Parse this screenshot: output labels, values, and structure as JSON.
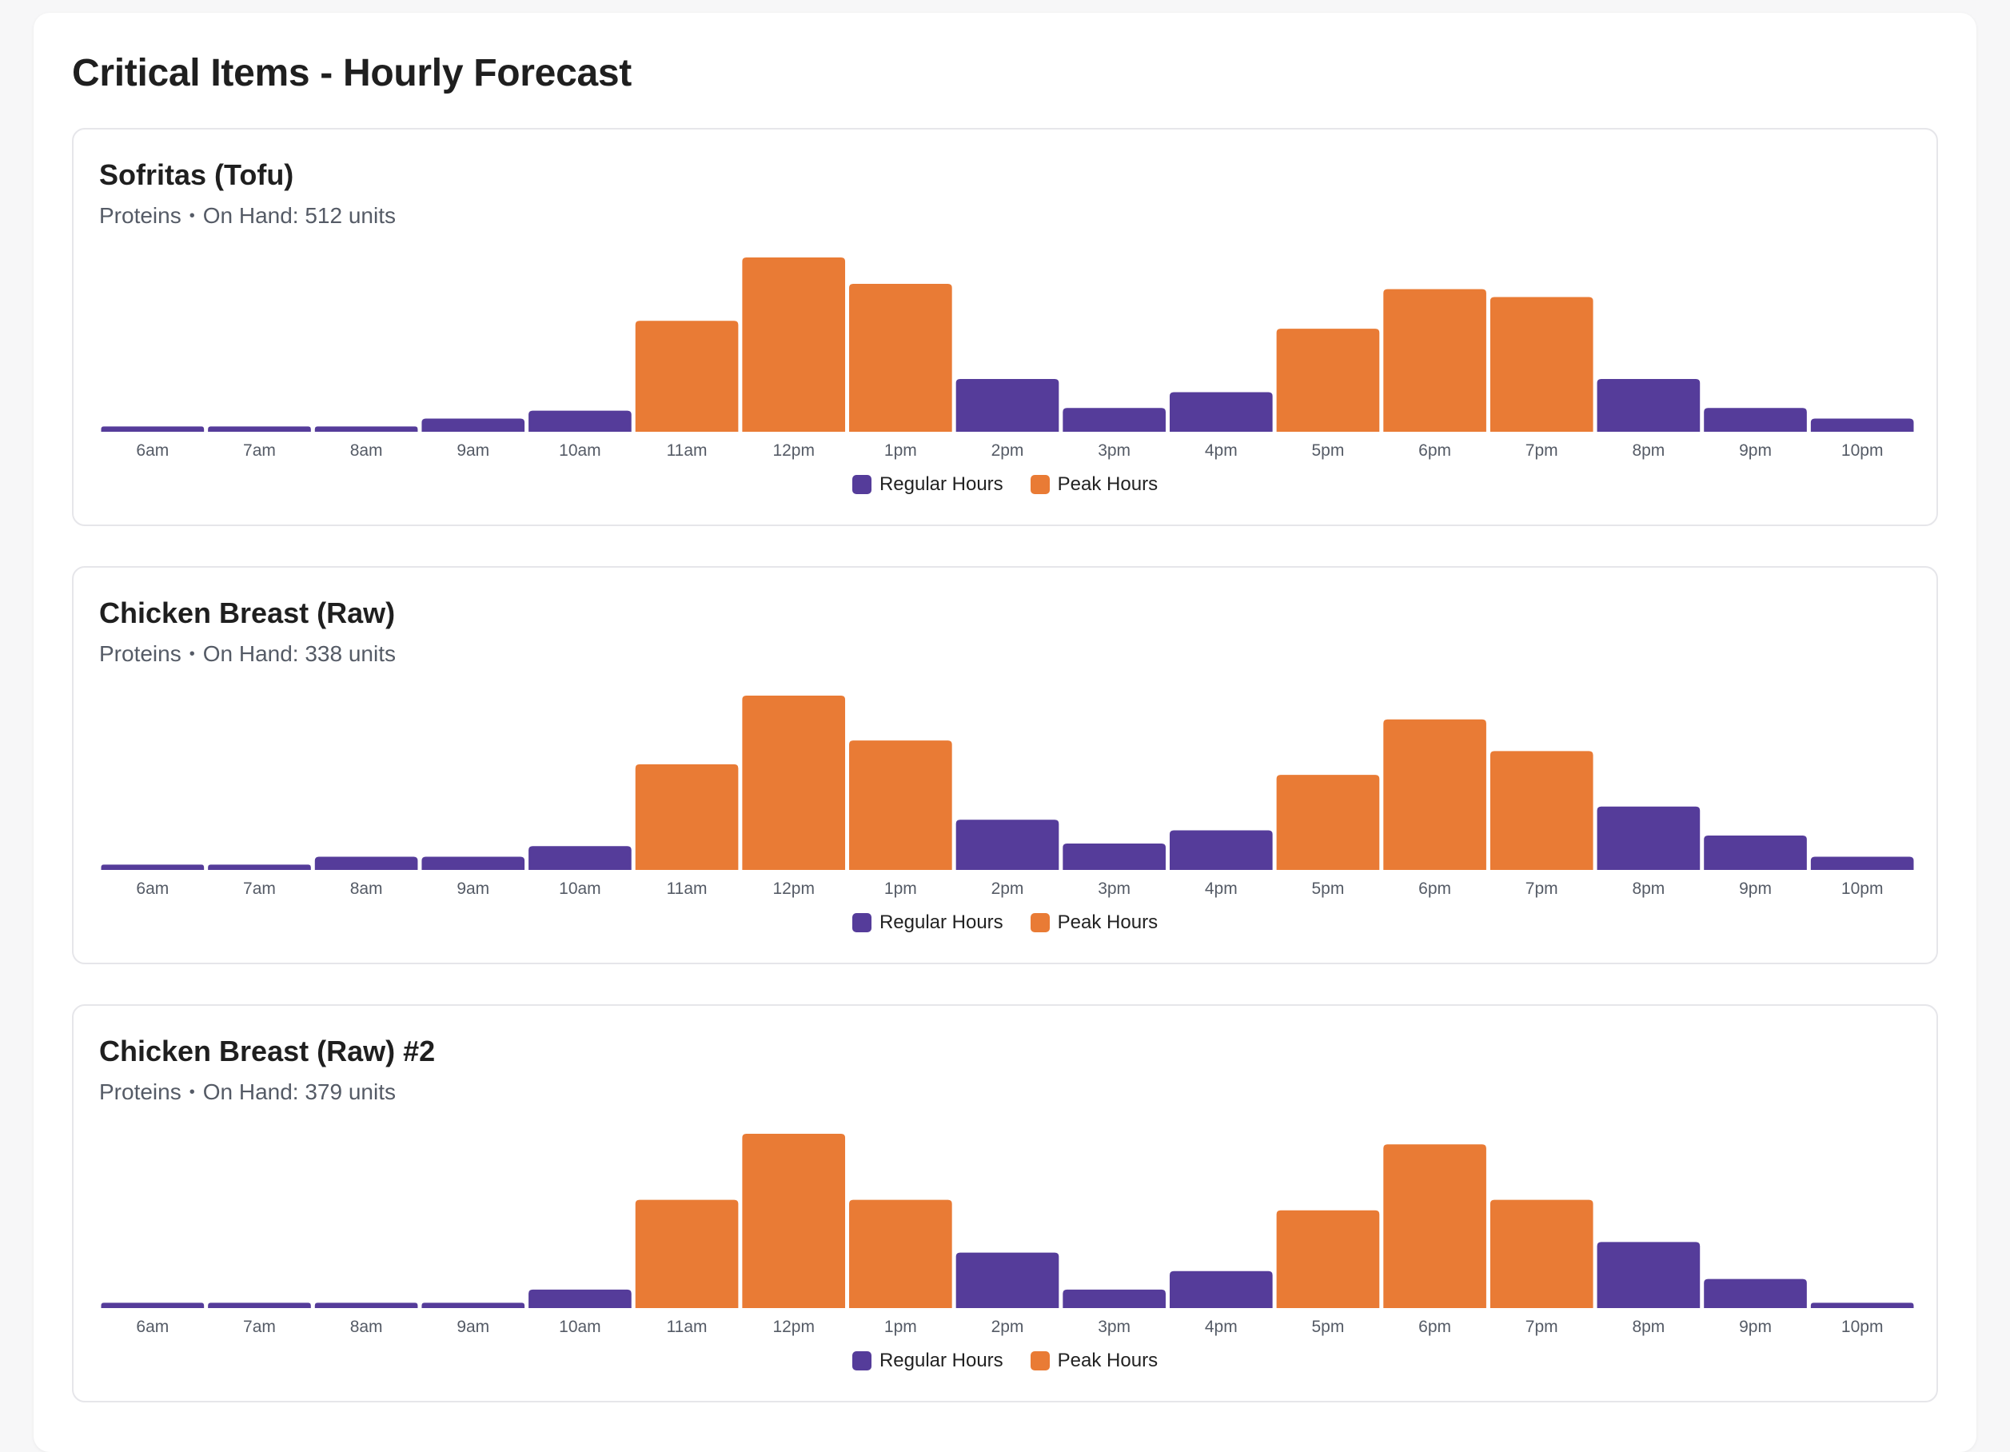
{
  "page": {
    "title": "Critical Items - Hourly Forecast"
  },
  "legend": {
    "regular_label": "Regular Hours",
    "peak_label": "Peak Hours"
  },
  "colors": {
    "regular": "#553c9a",
    "peak": "#e97b35"
  },
  "items": [
    {
      "name": "Sofritas (Tofu)",
      "category": "Proteins",
      "on_hand": "On Hand: 512 units"
    },
    {
      "name": "Chicken Breast (Raw)",
      "category": "Proteins",
      "on_hand": "On Hand: 338 units"
    },
    {
      "name": "Chicken Breast (Raw) #2",
      "category": "Proteins",
      "on_hand": "On Hand: 379 units"
    }
  ],
  "chart_data": [
    {
      "type": "bar",
      "title": "Sofritas (Tofu)",
      "categories": [
        "6am",
        "7am",
        "8am",
        "9am",
        "10am",
        "11am",
        "12pm",
        "1pm",
        "2pm",
        "3pm",
        "4pm",
        "5pm",
        "6pm",
        "7pm",
        "8pm",
        "9pm",
        "10pm"
      ],
      "series": [
        {
          "name": "Regular Hours",
          "indices": [
            0,
            1,
            2,
            3,
            4,
            8,
            9,
            10,
            14,
            15,
            16
          ]
        },
        {
          "name": "Peak Hours",
          "indices": [
            5,
            6,
            11,
            12,
            13,
            7
          ]
        }
      ],
      "values": [
        2,
        2,
        2,
        5,
        8,
        42,
        66,
        56,
        20,
        9,
        15,
        39,
        54,
        51,
        20,
        9,
        5
      ],
      "xlabel": "",
      "ylabel": "",
      "ylim": [
        0,
        66
      ],
      "legend": "bottom-center"
    },
    {
      "type": "bar",
      "title": "Chicken Breast (Raw)",
      "categories": [
        "6am",
        "7am",
        "8am",
        "9am",
        "10am",
        "11am",
        "12pm",
        "1pm",
        "2pm",
        "3pm",
        "4pm",
        "5pm",
        "6pm",
        "7pm",
        "8pm",
        "9pm",
        "10pm"
      ],
      "series": [
        {
          "name": "Regular Hours",
          "indices": [
            0,
            1,
            2,
            3,
            4,
            8,
            9,
            10,
            14,
            15,
            16
          ]
        },
        {
          "name": "Peak Hours",
          "indices": [
            5,
            6,
            7,
            11,
            12,
            13
          ]
        }
      ],
      "values": [
        2,
        2,
        5,
        5,
        9,
        40,
        66,
        49,
        19,
        10,
        15,
        36,
        57,
        45,
        24,
        13,
        5
      ],
      "xlabel": "",
      "ylabel": "",
      "ylim": [
        0,
        66
      ],
      "legend": "bottom-center"
    },
    {
      "type": "bar",
      "title": "Chicken Breast (Raw) #2",
      "categories": [
        "6am",
        "7am",
        "8am",
        "9am",
        "10am",
        "11am",
        "12pm",
        "1pm",
        "2pm",
        "3pm",
        "4pm",
        "5pm",
        "6pm",
        "7pm",
        "8pm",
        "9pm",
        "10pm"
      ],
      "series": [
        {
          "name": "Regular Hours",
          "indices": [
            0,
            1,
            2,
            3,
            4,
            8,
            9,
            10,
            14,
            15,
            16
          ]
        },
        {
          "name": "Peak Hours",
          "indices": [
            5,
            6,
            7,
            11,
            12,
            13
          ]
        }
      ],
      "values": [
        2,
        2,
        2,
        2,
        7,
        41,
        66,
        41,
        21,
        7,
        14,
        37,
        62,
        41,
        25,
        11,
        2
      ],
      "xlabel": "",
      "ylabel": "",
      "ylim": [
        0,
        66
      ],
      "legend": "bottom-center"
    }
  ]
}
